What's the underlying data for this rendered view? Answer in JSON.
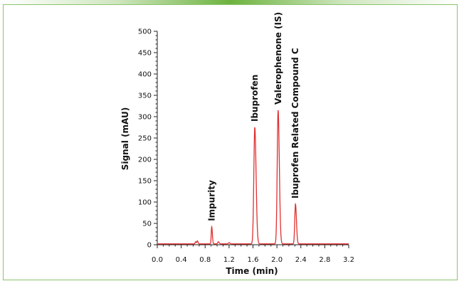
{
  "chart_data": {
    "type": "line",
    "title": "",
    "xlabel": "Time (min)",
    "ylabel": "Signal (mAU)",
    "xlim": [
      0.0,
      3.2
    ],
    "ylim": [
      0,
      500
    ],
    "x_ticks": [
      "0.0",
      "0.4",
      "0.8",
      "1.2",
      "1.6",
      "2.0",
      "2.4",
      "2.8",
      "3.2"
    ],
    "y_ticks": [
      "0",
      "50",
      "100",
      "150",
      "200",
      "250",
      "300",
      "350",
      "400",
      "450",
      "500"
    ],
    "grid": false,
    "line_color": "#e03030",
    "baseline": 2,
    "peaks": [
      {
        "label": "",
        "x": 0.64,
        "height": 5,
        "width": 0.008
      },
      {
        "label": "",
        "x": 0.67,
        "height": 7,
        "width": 0.008
      },
      {
        "label": "Impurity",
        "x": 0.91,
        "height": 40,
        "width": 0.008
      },
      {
        "label": "",
        "x": 1.02,
        "height": 5,
        "width": 0.01
      },
      {
        "label": "",
        "x": 1.2,
        "height": 3,
        "width": 0.01
      },
      {
        "label": "Ibuprofen",
        "x": 1.63,
        "height": 273,
        "width": 0.016
      },
      {
        "label": "Valerophenone (IS)",
        "x": 2.02,
        "height": 313,
        "width": 0.015
      },
      {
        "label": "Ibuprofen Related Compound C",
        "x": 2.31,
        "height": 93,
        "width": 0.012
      }
    ]
  }
}
